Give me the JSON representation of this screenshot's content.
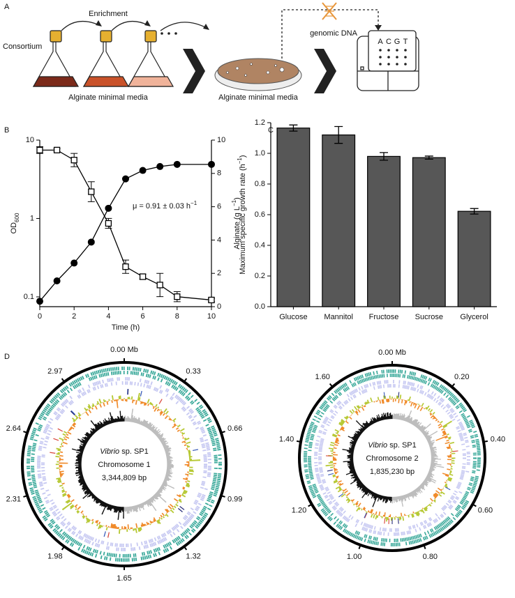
{
  "panel_labels": [
    "A",
    "B",
    "C",
    "D"
  ],
  "schematic": {
    "enrichment": "Enrichment",
    "consortium": "Consortium",
    "media_flasks": "Alginate minimal media",
    "media_plate": "Alginate minimal media",
    "dna": "genomic DNA",
    "bases": [
      "A",
      "C",
      "G",
      "T"
    ]
  },
  "chart_data": [
    {
      "type": "line",
      "x": [
        0,
        1,
        2,
        3,
        4,
        5,
        6,
        7,
        8,
        10
      ],
      "x_label": "Time (h)",
      "xlim": [
        0,
        10
      ],
      "xticks": [
        0,
        2,
        4,
        6,
        8,
        10
      ],
      "y_label": {
        "text": "OD",
        "sub": "600"
      },
      "y_scale": "log",
      "ylim": [
        0.075,
        10
      ],
      "yticks": [
        0.1,
        1,
        10
      ],
      "y2_label": {
        "text": "Alginate (g L",
        "sup": "−1",
        "end": ")"
      },
      "y2lim": [
        0,
        10
      ],
      "y2ticks": [
        0,
        2,
        4,
        6,
        8,
        10
      ],
      "annotation": {
        "text": "μ = 0.91 ± 0.03 h",
        "sup": "−1"
      },
      "series": [
        {
          "values": [
            0.088,
            0.16,
            0.27,
            0.5,
            1.35,
            3.2,
            4.1,
            4.6,
            4.9,
            4.9
          ],
          "color": "#000000",
          "marker": "circle"
        },
        {
          "values": [
            9.4,
            9.4,
            8.8,
            6.9,
            5.0,
            2.4,
            1.8,
            1.3,
            0.6,
            0.4
          ],
          "errors": [
            0.2,
            0.1,
            0.4,
            0.6,
            0.3,
            0.4,
            0.15,
            0.7,
            0.3,
            0.1
          ],
          "axis": "y2",
          "color": "#000000",
          "marker": "square"
        }
      ]
    },
    {
      "type": "bar",
      "categories": [
        "Glucose",
        "Mannitol",
        "Fructose",
        "Sucrose",
        "Glycerol"
      ],
      "values": [
        1.165,
        1.12,
        0.98,
        0.972,
        0.622
      ],
      "errors": [
        0.02,
        0.055,
        0.025,
        0.01,
        0.018
      ],
      "color": "#575757",
      "y_label": {
        "text": "Maximum specific growth rate (h",
        "sup": "−1",
        "end": ")"
      },
      "ylim": [
        0,
        1.2
      ],
      "yticks": [
        {
          "value": 0,
          "label": "0.0"
        },
        0.2,
        0.4,
        0.6,
        0.8,
        {
          "value": 1,
          "label": "1.0"
        },
        1.2
      ]
    }
  ],
  "genome_maps": [
    {
      "species": "Vibrio",
      "species_rest": " sp. SP1",
      "name": "Chromosome 1",
      "size": "3,344,809 bp",
      "ticks": [
        "0.00 Mb",
        "0.33",
        "0.66",
        "0.99",
        "1.32",
        "1.65",
        "1.98",
        "2.31",
        "2.64",
        "2.97"
      ]
    },
    {
      "species": "Vibrio",
      "species_rest": " sp. SP1",
      "name": "Chromosome 2",
      "size": "1,835,230 bp",
      "ticks": [
        "0.00 Mb",
        "0.20",
        "0.40",
        "0.60",
        "0.80",
        "1.00",
        "1.20",
        "1.40",
        "1.60"
      ]
    }
  ]
}
